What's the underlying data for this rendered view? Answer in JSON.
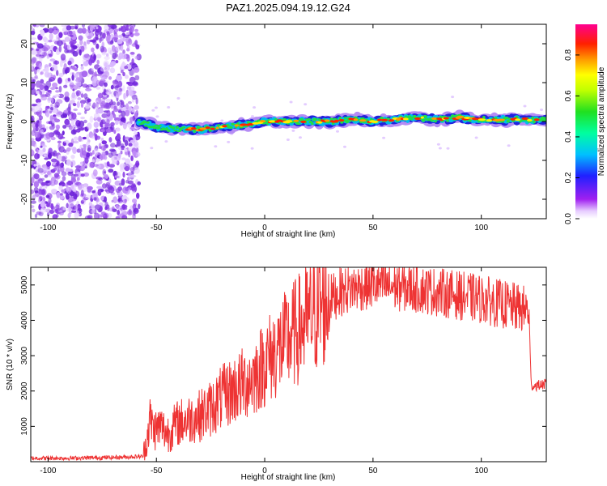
{
  "title": "PAZ1.2025.094.19.12.G24",
  "chart_data": [
    {
      "type": "heatmap",
      "xlabel": "Height of straight line (km)",
      "ylabel": "Frequency (Hz)",
      "xlim": [
        -108,
        130
      ],
      "ylim": [
        -25,
        25
      ],
      "xticks": [
        -100,
        -50,
        0,
        50,
        100
      ],
      "yticks": [
        -20,
        -10,
        0,
        10,
        20
      ],
      "colorbar": {
        "label": "Normalized spectral amplitude",
        "range": [
          0,
          0.95
        ],
        "ticks": [
          0.0,
          0.2,
          0.4,
          0.6,
          0.8
        ]
      },
      "ridge": {
        "description_points_x": [
          -58,
          -50,
          -40,
          -30,
          -20,
          -10,
          0,
          10,
          20,
          30,
          40,
          50,
          60,
          70,
          80,
          90,
          100,
          110,
          120,
          130
        ],
        "frequency_hz": [
          0,
          -1.5,
          -2,
          -2,
          -1.5,
          -1,
          0,
          0,
          0,
          0,
          0.5,
          0,
          0.5,
          1,
          0.5,
          1,
          0.5,
          0.5,
          0.5,
          0.5
        ]
      },
      "noise_region_x": [
        -108,
        -58
      ]
    },
    {
      "type": "line",
      "xlabel": "Height of straight line (km)",
      "ylabel": "SNR (10 * v/v)",
      "xlim": [
        -108,
        130
      ],
      "ylim": [
        0,
        5500
      ],
      "xticks": [
        -100,
        -50,
        0,
        50,
        100
      ],
      "yticks": [
        1000,
        2000,
        3000,
        4000,
        5000
      ],
      "color": "#ee3333",
      "series": [
        {
          "x": [
            -108,
            -90,
            -70,
            -56,
            -54,
            -53,
            -51,
            -48,
            -45,
            -40,
            -35,
            -30,
            -25,
            -20,
            -15,
            -10,
            -5,
            0,
            5,
            10,
            15,
            20,
            25,
            30,
            35,
            40,
            50,
            60,
            70,
            80,
            90,
            100,
            110,
            120,
            122,
            123,
            125,
            130
          ],
          "y": [
            100,
            100,
            120,
            150,
            800,
            1200,
            900,
            1000,
            800,
            1100,
            1200,
            1300,
            1500,
            1800,
            2000,
            2200,
            2400,
            2800,
            3100,
            3400,
            3700,
            4000,
            4300,
            4600,
            4800,
            4900,
            5000,
            4950,
            4900,
            4800,
            4700,
            4600,
            4450,
            4300,
            4300,
            2150,
            2150,
            2200
          ]
        }
      ]
    }
  ]
}
